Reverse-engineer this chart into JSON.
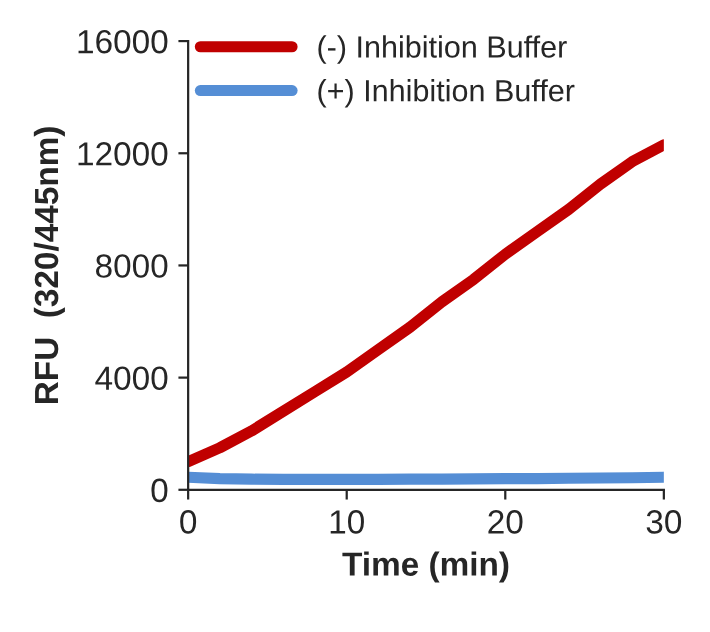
{
  "chart_data": {
    "type": "line",
    "xlabel": "Time (min)",
    "ylabel": "RFU  (320/445nm)",
    "x": [
      0,
      2,
      4,
      6,
      8,
      10,
      12,
      14,
      16,
      18,
      20,
      22,
      24,
      26,
      28,
      30
    ],
    "series": [
      {
        "name": "(-) Inhibition Buffer",
        "color": "#c00000",
        "values": [
          1000,
          1500,
          2100,
          2800,
          3500,
          4200,
          5000,
          5800,
          6700,
          7500,
          8400,
          9200,
          10000,
          10900,
          11700,
          12300
        ]
      },
      {
        "name": "(+) Inhibition Buffer",
        "color": "#558ed5",
        "values": [
          450,
          400,
          380,
          370,
          370,
          370,
          370,
          380,
          380,
          390,
          400,
          400,
          410,
          420,
          430,
          450
        ]
      }
    ],
    "xlim": [
      0,
      30
    ],
    "xticks": [
      0,
      10,
      20,
      30
    ],
    "ylim": [
      0,
      16000
    ],
    "yticks": [
      0,
      4000,
      8000,
      12000,
      16000
    ],
    "grid": false,
    "legend": "top left",
    "marker": "none",
    "line_style": "solid"
  }
}
